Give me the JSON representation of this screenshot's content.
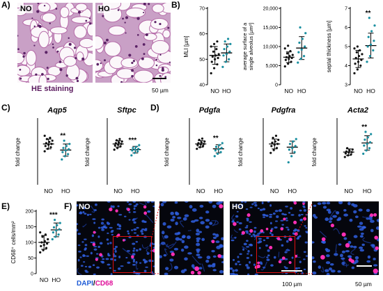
{
  "figure": {
    "panel_labels": [
      "A)",
      "B)",
      "C)",
      "D)",
      "E)",
      "F)"
    ],
    "panelA": {
      "left_label": "NO",
      "right_label": "HO",
      "stain_label": "HE staining",
      "scale_text": "50 µm",
      "stain_color": "#5a1a5e"
    },
    "panelF": {
      "left_label": "NO",
      "right_label": "HO",
      "legend_dapi": "DAPI",
      "legend_sep": "/",
      "legend_cd68": "CD68",
      "scale_main": "100 µm",
      "scale_zoom": "50 µm",
      "dapi_color": "#1e5bd6",
      "cd68_color": "#e0109a",
      "highlight_color": "#e01010"
    },
    "colors": {
      "NO": "#111111",
      "HO": "#1a8fa0"
    }
  },
  "chart_data": [
    {
      "id": "MLI",
      "type": "scatter",
      "panel": "B",
      "ylabel": "MLI [µm]",
      "ticks": [
        40,
        50,
        60,
        70
      ],
      "ylim": [
        40,
        70
      ],
      "categories": [
        "NO",
        "HO"
      ],
      "significance": "",
      "series": [
        {
          "name": "NO",
          "mean": 51.5,
          "sd": 3.5,
          "values": [
            44.5,
            46.5,
            48,
            49,
            50,
            50.5,
            51,
            51.5,
            52,
            53,
            54,
            55,
            56,
            57
          ]
        },
        {
          "name": "HO",
          "mean": 52.5,
          "sd": 3.5,
          "values": [
            47,
            49,
            50,
            51.5,
            52,
            53,
            54,
            55,
            56,
            57,
            58
          ]
        }
      ]
    },
    {
      "id": "surface",
      "type": "scatter",
      "panel": "B",
      "ylabel": "average surface of a single alveolus [µm²]",
      "ticks": [
        0,
        5000,
        10000,
        15000,
        20000
      ],
      "ylim": [
        0,
        20000
      ],
      "categories": [
        "NO",
        "HO"
      ],
      "significance": "",
      "series": [
        {
          "name": "NO",
          "mean": 7200,
          "sd": 1400,
          "values": [
            4800,
            5500,
            6000,
            6500,
            6800,
            7000,
            7200,
            7500,
            7800,
            8200,
            8800,
            9500,
            10200
          ]
        },
        {
          "name": "HO",
          "mean": 9600,
          "sd": 3000,
          "values": [
            5800,
            6800,
            7500,
            8500,
            9200,
            10000,
            11000,
            12000,
            13500,
            15000
          ]
        }
      ]
    },
    {
      "id": "septal",
      "type": "scatter",
      "panel": "B",
      "ylabel": "septal thickness [µm]",
      "ticks": [
        3,
        4,
        5,
        6,
        7
      ],
      "ylim": [
        3,
        7
      ],
      "categories": [
        "NO",
        "HO"
      ],
      "significance": "**",
      "series": [
        {
          "name": "NO",
          "mean": 4.35,
          "sd": 0.45,
          "values": [
            3.6,
            3.8,
            4.0,
            4.1,
            4.2,
            4.3,
            4.4,
            4.5,
            4.6,
            4.7,
            4.8,
            4.9,
            5.0
          ]
        },
        {
          "name": "HO",
          "mean": 5.05,
          "sd": 0.65,
          "values": [
            4.2,
            4.5,
            4.8,
            5.0,
            5.1,
            5.3,
            5.5,
            5.8,
            6.1,
            6.5
          ]
        }
      ]
    },
    {
      "id": "Aqp5",
      "type": "scatter",
      "panel": "C",
      "title": "Aqp5",
      "ylabel": "fold change",
      "ylim": [
        0,
        1.6
      ],
      "categories": [
        "NO",
        "HO"
      ],
      "significance": "**",
      "series": [
        {
          "name": "NO",
          "mean": 1.0,
          "sd": 0.12,
          "values": [
            0.82,
            0.88,
            0.92,
            0.95,
            0.98,
            1.0,
            1.02,
            1.05,
            1.08,
            1.12,
            1.15,
            1.2
          ]
        },
        {
          "name": "HO",
          "mean": 0.85,
          "sd": 0.15,
          "values": [
            0.62,
            0.7,
            0.75,
            0.8,
            0.84,
            0.87,
            0.9,
            0.95,
            1.0,
            1.08
          ]
        }
      ]
    },
    {
      "id": "Sftpc",
      "type": "scatter",
      "panel": "C",
      "title": "Sftpc",
      "ylabel": "fold change",
      "ylim": [
        0,
        1.6
      ],
      "categories": [
        "NO",
        "HO"
      ],
      "significance": "***",
      "series": [
        {
          "name": "NO",
          "mean": 1.0,
          "sd": 0.08,
          "values": [
            0.86,
            0.9,
            0.94,
            0.96,
            0.98,
            1.0,
            1.02,
            1.04,
            1.06,
            1.09,
            1.12
          ]
        },
        {
          "name": "HO",
          "mean": 0.86,
          "sd": 0.08,
          "values": [
            0.72,
            0.78,
            0.82,
            0.84,
            0.86,
            0.88,
            0.9,
            0.93,
            0.97
          ]
        }
      ]
    },
    {
      "id": "Pdgfa",
      "type": "scatter",
      "panel": "D",
      "title": "Pdgfa",
      "ylabel": "fold change",
      "ylim": [
        0,
        1.6
      ],
      "categories": [
        "NO",
        "HO"
      ],
      "significance": "**",
      "series": [
        {
          "name": "NO",
          "mean": 1.0,
          "sd": 0.08,
          "values": [
            0.88,
            0.92,
            0.95,
            0.97,
            0.99,
            1.0,
            1.02,
            1.04,
            1.06,
            1.1,
            1.13
          ]
        },
        {
          "name": "HO",
          "mean": 0.88,
          "sd": 0.1,
          "values": [
            0.7,
            0.76,
            0.8,
            0.84,
            0.87,
            0.9,
            0.93,
            0.97,
            1.02
          ]
        }
      ]
    },
    {
      "id": "Pdgfra",
      "type": "scatter",
      "panel": "D",
      "title": "Pdgfra",
      "ylabel": "fold change",
      "ylim": [
        0,
        1.6
      ],
      "categories": [
        "NO",
        "HO"
      ],
      "significance": "",
      "series": [
        {
          "name": "NO",
          "mean": 1.0,
          "sd": 0.12,
          "values": [
            0.78,
            0.85,
            0.9,
            0.95,
            0.98,
            1.0,
            1.03,
            1.06,
            1.1,
            1.15,
            1.2
          ]
        },
        {
          "name": "HO",
          "mean": 0.92,
          "sd": 0.15,
          "values": [
            0.55,
            0.7,
            0.8,
            0.86,
            0.9,
            0.95,
            1.0,
            1.06,
            1.12
          ]
        }
      ]
    },
    {
      "id": "Acta2",
      "type": "scatter",
      "panel": "D",
      "title": "Acta2",
      "ylabel": "fold change",
      "ylim": [
        0,
        2.0
      ],
      "categories": [
        "NO",
        "HO"
      ],
      "significance": "**",
      "series": [
        {
          "name": "NO",
          "mean": 1.0,
          "sd": 0.1,
          "values": [
            0.85,
            0.9,
            0.93,
            0.96,
            0.99,
            1.0,
            1.02,
            1.05,
            1.08,
            1.12
          ]
        },
        {
          "name": "HO",
          "mean": 1.28,
          "sd": 0.22,
          "values": [
            0.95,
            1.05,
            1.12,
            1.2,
            1.25,
            1.3,
            1.38,
            1.45,
            1.55,
            1.62
          ]
        }
      ]
    },
    {
      "id": "CD68",
      "type": "scatter",
      "panel": "E",
      "ylabel": "CD68⁺ cells/mm²",
      "ticks": [
        0,
        50,
        100,
        150,
        200
      ],
      "ylim": [
        0,
        200
      ],
      "categories": [
        "NO",
        "HO"
      ],
      "significance": "***",
      "series": [
        {
          "name": "NO",
          "mean": 100,
          "sd": 22,
          "values": [
            68,
            75,
            82,
            88,
            92,
            96,
            100,
            104,
            110,
            118,
            125,
            132
          ]
        },
        {
          "name": "HO",
          "mean": 140,
          "sd": 22,
          "values": [
            110,
            118,
            125,
            132,
            138,
            142,
            148,
            155,
            162,
            172
          ]
        }
      ]
    }
  ]
}
